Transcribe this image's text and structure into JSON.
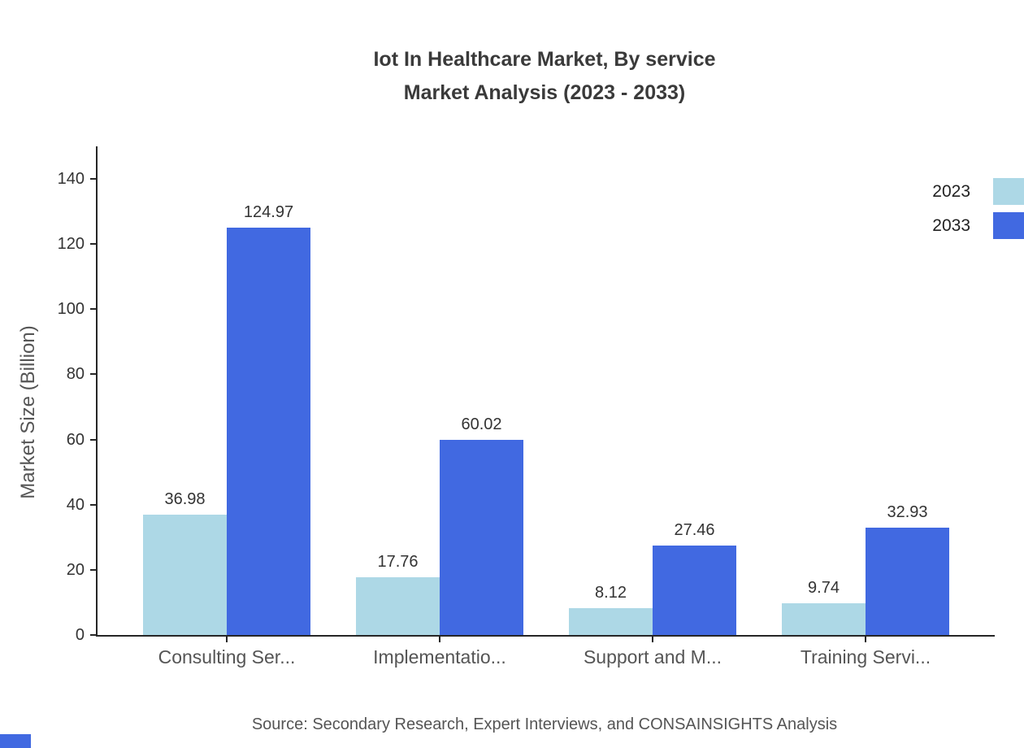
{
  "chart_data": {
    "type": "bar",
    "title": "Iot In Healthcare Market, By service Market Analysis (2023 - 2033)",
    "title_lines": [
      "Iot In Healthcare Market, By service",
      "Market Analysis (2023 - 2033)"
    ],
    "categories": [
      "Consulting Ser...",
      "Implementatio...",
      "Support and M...",
      "Training Servi..."
    ],
    "series": [
      {
        "name": "2023",
        "color": "#ADD8E6",
        "values": [
          36.98,
          17.76,
          8.12,
          9.74
        ]
      },
      {
        "name": "2033",
        "color": "#4169E1",
        "values": [
          124.97,
          60.02,
          27.46,
          32.93
        ]
      }
    ],
    "value_labels": [
      "36.98",
      "124.97",
      "17.76",
      "60.02",
      "8.12",
      "27.46",
      "9.74",
      "32.93"
    ],
    "xlabel": "",
    "ylabel": "Market Size (Billion)",
    "ylim": [
      0,
      150
    ],
    "yticks": [
      0,
      20,
      40,
      60,
      80,
      100,
      120,
      140
    ],
    "grid": false,
    "legend_position": "top-right"
  },
  "footer": {
    "source": "Source: Secondary Research, Expert Interviews, and CONSAINSIGHTS Analysis"
  },
  "colors": {
    "series_2023": "#ADD8E6",
    "series_2033": "#4169E1",
    "axis": "#262626",
    "text_primary": "#333333",
    "text_secondary": "#555555",
    "brand_mark": "#4169E1"
  }
}
